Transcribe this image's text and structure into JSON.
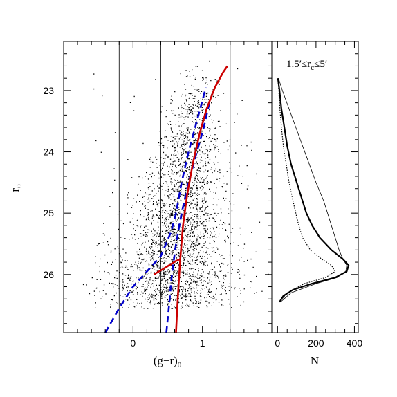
{
  "chart_data": [
    {
      "type": "scatter",
      "name": "color-magnitude diagram",
      "xlabel": "(g−r)",
      "xlabel_sub": "0",
      "ylabel": "r",
      "ylabel_sub": "0",
      "xlim": [
        -1.0,
        2.0
      ],
      "ylim": [
        26.95,
        22.2
      ],
      "x_ticks": [
        0,
        1
      ],
      "y_ticks": [
        23,
        24,
        25,
        26
      ],
      "vertical_lines": [
        -0.2,
        0.4,
        1.4
      ],
      "point_cloud": {
        "description_center": [
          0.6,
          25.6
        ],
        "approx_count": 6000
      },
      "series": [
        {
          "style": "dashed",
          "color": "#0000cc",
          "x": [
            -0.4,
            -0.2,
            0.0,
            0.2,
            0.4,
            0.55,
            0.62,
            0.7,
            0.8,
            0.92,
            1.05
          ],
          "y": [
            26.95,
            26.55,
            26.2,
            25.95,
            25.7,
            25.3,
            25.0,
            24.5,
            24.0,
            23.5,
            22.95
          ]
        },
        {
          "style": "dashed",
          "color": "#0000cc",
          "x": [
            0.48,
            0.52,
            0.56,
            0.62,
            0.7,
            0.8,
            0.92,
            1.02,
            1.1
          ],
          "y": [
            26.95,
            26.5,
            26.0,
            25.5,
            25.0,
            24.5,
            24.0,
            23.6,
            23.2
          ]
        },
        {
          "style": "solid",
          "color": "#cc0000",
          "x": [
            0.62,
            0.64,
            0.66,
            0.68,
            0.72,
            0.78,
            0.86,
            0.96,
            1.06,
            1.18,
            1.3,
            1.36
          ],
          "y": [
            26.95,
            26.5,
            26.1,
            25.75,
            25.2,
            24.7,
            24.2,
            23.7,
            23.3,
            22.95,
            22.7,
            22.6
          ]
        },
        {
          "style": "solid",
          "color": "#cc0000",
          "x": [
            0.3,
            0.42,
            0.52,
            0.62,
            0.68
          ],
          "y": [
            26.0,
            25.92,
            25.85,
            25.78,
            25.75
          ]
        }
      ]
    },
    {
      "type": "line",
      "name": "luminosity function",
      "xlabel": "N",
      "xlim": [
        -30,
        420
      ],
      "ylim": [
        26.95,
        22.2
      ],
      "x_ticks": [
        0,
        200,
        400
      ],
      "x_tick_labels": [
        "0",
        "200",
        "400"
      ],
      "annotation": "1.5′≤r",
      "annotation_sub": "c",
      "annotation_end": "≤5′",
      "series": [
        {
          "style": "thick",
          "y": [
            22.8,
            23.0,
            23.3,
            23.6,
            23.9,
            24.2,
            24.5,
            24.8,
            25.0,
            25.2,
            25.4,
            25.6,
            25.75,
            25.85,
            25.95,
            26.05,
            26.15,
            26.25,
            26.35,
            26.45
          ],
          "x": [
            2,
            10,
            20,
            35,
            50,
            70,
            100,
            130,
            150,
            180,
            220,
            280,
            340,
            370,
            360,
            300,
            180,
            80,
            30,
            10
          ]
        },
        {
          "style": "thin",
          "y": [
            22.8,
            23.0,
            23.3,
            23.6,
            23.9,
            24.2,
            24.5,
            24.8,
            25.0,
            25.2,
            25.4,
            25.6,
            25.75,
            25.85,
            25.95,
            26.05,
            26.15,
            26.3,
            26.45
          ],
          "x": [
            5,
            25,
            60,
            95,
            130,
            165,
            200,
            240,
            260,
            280,
            300,
            320,
            340,
            360,
            355,
            310,
            200,
            70,
            15
          ]
        },
        {
          "style": "dotted",
          "y": [
            22.8,
            23.0,
            23.3,
            23.6,
            23.9,
            24.2,
            24.5,
            24.8,
            25.0,
            25.2,
            25.4,
            25.6,
            25.75,
            25.85,
            25.95,
            26.05,
            26.15,
            26.3,
            26.45
          ],
          "x": [
            2,
            6,
            12,
            20,
            30,
            45,
            60,
            80,
            95,
            110,
            130,
            170,
            230,
            280,
            300,
            250,
            140,
            50,
            10
          ]
        }
      ]
    }
  ]
}
